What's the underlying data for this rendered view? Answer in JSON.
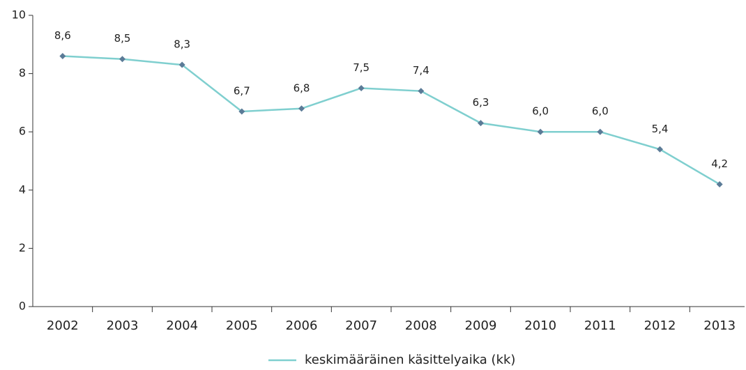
{
  "chart_data": {
    "type": "line",
    "categories": [
      "2002",
      "2003",
      "2004",
      "2005",
      "2006",
      "2007",
      "2008",
      "2009",
      "2010",
      "2011",
      "2012",
      "2013"
    ],
    "series": [
      {
        "name": "keskimääräinen käsittelyaika (kk)",
        "color": "#7fcfcf",
        "marker_color": "#5b7b97",
        "values": [
          8.6,
          8.5,
          8.3,
          6.7,
          6.8,
          7.5,
          7.4,
          6.3,
          6.0,
          6.0,
          5.4,
          4.2
        ],
        "value_labels": [
          "8,6",
          "8,5",
          "8,3",
          "6,7",
          "6,8",
          "7,5",
          "7,4",
          "6,3",
          "6,0",
          "6,0",
          "5,4",
          "4,2"
        ]
      }
    ],
    "ylim": [
      0,
      10
    ],
    "yticks": [
      0,
      2,
      4,
      6,
      8,
      10
    ],
    "grid": false,
    "legend": "bottom"
  }
}
